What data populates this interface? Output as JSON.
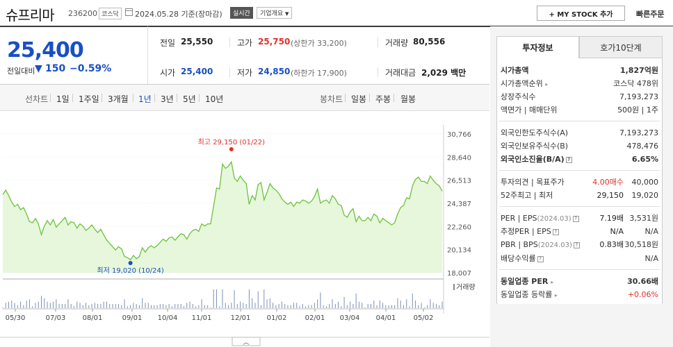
{
  "header": {
    "name": "슈프리마",
    "code": "236200",
    "market": "코스닥",
    "date": "2024.05.28",
    "basis": "기준(장마감)",
    "realtime": "실시간",
    "company_btn": "기업개요",
    "mystock_btn": "+ MY STOCK 추가",
    "quick_order": "빠른주문"
  },
  "price": {
    "current": "25,400",
    "prev_label": "전일대비",
    "change_arrow": "▼",
    "change": "150",
    "change_pct": "−0.59%"
  },
  "quote": {
    "prev_label": "전일",
    "prev": "25,550",
    "high_label": "고가",
    "high": "25,750",
    "upper_limit": "(상한가 33,200)",
    "vol_label": "거래량",
    "vol": "80,556",
    "open_label": "시가",
    "open": "25,400",
    "low_label": "저가",
    "low": "24,850",
    "lower_limit": "(하한가 17,900)",
    "amt_label": "거래대금",
    "amt": "2,029 백만"
  },
  "tabs": {
    "line_label": "선차트",
    "periods": [
      "1일",
      "1주일",
      "3개월",
      "1년",
      "3년",
      "5년",
      "10년"
    ],
    "active": "1년",
    "candle_label": "봉차트",
    "candles": [
      "일봉",
      "주봉",
      "월봉"
    ]
  },
  "chart_data": {
    "type": "area",
    "ylim": [
      18007,
      30766
    ],
    "y_ticks": [
      "30,766",
      "28,640",
      "26,513",
      "24,387",
      "22,260",
      "20,134",
      "18,007"
    ],
    "x_ticks": [
      "05/30",
      "07/03",
      "08/01",
      "09/01",
      "10/04",
      "11/01",
      "12/01",
      "01/02",
      "02/01",
      "03/04",
      "04/01",
      "05/02"
    ],
    "high_annotation": "최고 29,150 (01/22)",
    "low_annotation": "최저 19,020 (10/24)",
    "volume_label": "거래량",
    "series": [
      {
        "name": "",
        "values": [
          25200,
          25600,
          25100,
          24500,
          24100,
          24300,
          23800,
          24000,
          23400,
          22700,
          22600,
          23000,
          22500,
          21500,
          22300,
          22800,
          22400,
          22900,
          22200,
          22500,
          22800,
          23100,
          22400,
          22700,
          22600,
          22100,
          22500,
          22300,
          21900,
          22100,
          22400,
          22000,
          21700,
          22000,
          21500,
          21000,
          20700,
          20400,
          20100,
          20400,
          20200,
          19500,
          19400,
          19200,
          19600,
          19300,
          19500,
          20300,
          19900,
          20300,
          20500,
          20300,
          20500,
          20800,
          21100,
          20900,
          21200,
          21300,
          21000,
          21300,
          21600,
          21500,
          21100,
          21600,
          21900,
          22000,
          21800,
          22500,
          22300,
          22500,
          22500,
          24100,
          25800,
          25700,
          28000,
          27600,
          27800,
          28200,
          26700,
          26400,
          26900,
          26500,
          26200,
          24300,
          25100,
          24700,
          26100,
          26300,
          24700,
          25400,
          26200,
          25800,
          25600,
          25300,
          24800,
          24500,
          24300,
          24500,
          24100,
          24500,
          24400,
          24700,
          24600,
          24400,
          24600,
          25000,
          25700,
          24400,
          24600,
          24700,
          24400,
          25100,
          24800,
          24300,
          24200,
          23300,
          23100,
          23600,
          23900,
          22700,
          23200,
          22800,
          22800,
          23100,
          22800,
          23400,
          23200,
          22600,
          23000,
          22800,
          22600,
          22400,
          22600,
          23400,
          24000,
          24200,
          24900,
          24800,
          26000,
          26600,
          26800,
          26400,
          26400,
          26200,
          26900,
          26500,
          26200,
          26000,
          25500
        ]
      }
    ]
  },
  "right_panel": {
    "tab1": "투자정보",
    "tab2": "호가10단계",
    "rows": [
      {
        "label": "시가총액",
        "value": "1,827억원"
      },
      {
        "label": "시가총액순위",
        "value": "코스닥 478위"
      },
      {
        "label": "상장주식수",
        "value": "7,193,273"
      },
      {
        "label": "액면가 | 매매단위",
        "value": "500원 | 1주"
      },
      {
        "label": "외국인한도주식수(A)",
        "value": "7,193,273"
      },
      {
        "label": "외국인보유주식수(B)",
        "value": "478,476"
      },
      {
        "label": "외국인소진율(B/A)",
        "value": "6.65%"
      },
      {
        "label": "투자의견 | 목표주가",
        "mid": "4.00매수",
        "value": "40,000"
      },
      {
        "label": "52주최고 | 최저",
        "mid": "29,150",
        "value": "19,020"
      },
      {
        "label": "PER | EPS",
        "label_sub": "(2024.03)",
        "mid": "7.19배",
        "value": "3,531원"
      },
      {
        "label": "추정PER | EPS",
        "mid": "N/A",
        "value": "N/A"
      },
      {
        "label": "PBR | BPS",
        "label_sub": "(2024.03)",
        "mid": "0.83배",
        "value": "30,518원"
      },
      {
        "label": "배당수익률",
        "value": "N/A"
      },
      {
        "label": "동일업종 PER",
        "value": "30.66배"
      },
      {
        "label": "동일업종 등락률",
        "value": "+0.06%"
      }
    ]
  },
  "colors": {
    "blue": "#1a4fc4",
    "red": "#e0302a",
    "line_green": "#6cc23a",
    "fill_green": "#e7f7dc"
  }
}
